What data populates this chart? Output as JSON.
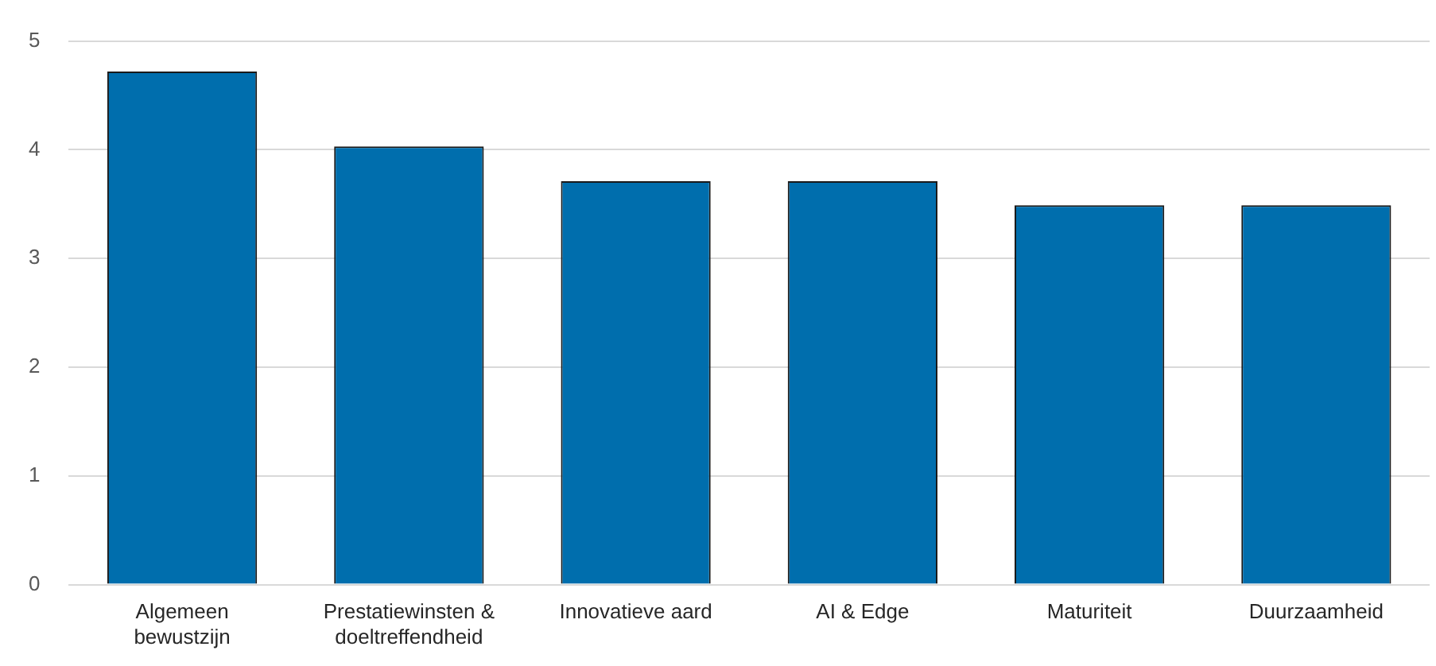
{
  "chart_data": {
    "type": "bar",
    "categories": [
      "Algemeen bewustzijn",
      "Prestatiewinsten & doeltreffendheid",
      "Innovatieve aard",
      "AI & Edge",
      "Maturiteit",
      "Duurzaamheid"
    ],
    "values": [
      4.72,
      4.03,
      3.71,
      3.71,
      3.49,
      3.49
    ],
    "color": "#006ead",
    "ylim": [
      0,
      5
    ],
    "yticks": [
      0,
      1,
      2,
      3,
      4,
      5
    ],
    "grid": "y",
    "legend": false
  }
}
